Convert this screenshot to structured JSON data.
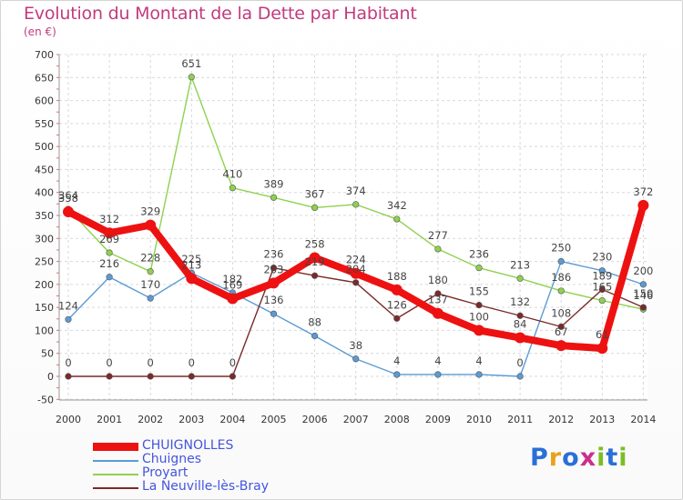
{
  "title": "Evolution du Montant de la Dette par Habitant",
  "unit": "(en €)",
  "brand": {
    "text": "Proxiti",
    "letter_colors": [
      "#2a6fd8",
      "#e8a21c",
      "#2a6fd8",
      "#cc2f8a",
      "#7cbd27",
      "#2a6fd8",
      "#7cbd27"
    ]
  },
  "chart_data": {
    "type": "line",
    "x": [
      "2000",
      "2001",
      "2002",
      "2003",
      "2004",
      "2005",
      "2006",
      "2007",
      "2008",
      "2009",
      "2010",
      "2011",
      "2012",
      "2013",
      "2014"
    ],
    "yticks": [
      "700",
      "650",
      "600",
      "550",
      "500",
      "450",
      "400",
      "350",
      "300",
      "250",
      "200",
      "150",
      "100",
      "50",
      "0",
      "-50"
    ],
    "ylim": [
      -50,
      700
    ],
    "grid": true,
    "legend_position": "bottom-left",
    "series": [
      {
        "name": "Chuignes",
        "color": "#5b9bd5",
        "values": [
          124,
          216,
          170,
          225,
          182,
          136,
          88,
          38,
          4,
          4,
          4,
          0,
          250,
          230,
          200
        ],
        "labels": [
          "124",
          "216",
          "170",
          "225",
          "182",
          "136",
          "88",
          "38",
          "4",
          "4",
          "4",
          "0",
          "250",
          "230",
          "200"
        ]
      },
      {
        "name": "Proyart",
        "color": "#8fd14f",
        "values": [
          364,
          269,
          228,
          651,
          410,
          389,
          367,
          374,
          342,
          277,
          236,
          213,
          186,
          165,
          146
        ],
        "labels": [
          "364",
          "269",
          "228",
          "651",
          "410",
          "389",
          "367",
          "374",
          "342",
          "277",
          "236",
          "213",
          "186",
          "165",
          "146"
        ]
      },
      {
        "name": "La Neuville-lès-Bray",
        "color": "#7a2a2a",
        "values": [
          0,
          0,
          0,
          0,
          0,
          236,
          219,
          204,
          126,
          180,
          155,
          132,
          108,
          189,
          150
        ],
        "labels": [
          "0",
          "0",
          "0",
          "0",
          "0",
          "236",
          "219",
          "204",
          "126",
          "180",
          "155",
          "132",
          "108",
          "189",
          "150"
        ]
      },
      {
        "name": "CHUIGNOLLES",
        "color": "#ee1111",
        "values": [
          358,
          312,
          329,
          213,
          169,
          203,
          258,
          224,
          188,
          137,
          100,
          84,
          67,
          61,
          372
        ],
        "labels": [
          "358",
          "312",
          "329",
          "213",
          "169",
          "203",
          "258",
          "224",
          "188",
          "137",
          "100",
          "84",
          "67",
          "61",
          "372"
        ]
      }
    ],
    "legend_order": [
      "CHUIGNOLLES",
      "Chuignes",
      "Proyart",
      "La Neuville-lès-Bray"
    ]
  }
}
